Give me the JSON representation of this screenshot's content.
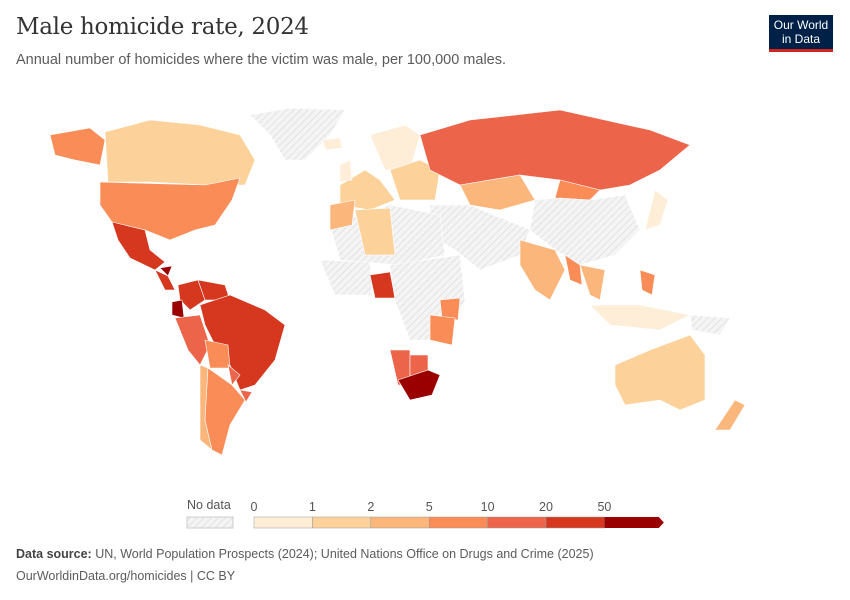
{
  "header": {
    "title": "Male homicide rate, 2024",
    "subtitle": "Annual number of homicides where the victim was male, per 100,000 males.",
    "logo": "Our World in Data"
  },
  "legend": {
    "no_data_label": "No data",
    "ticks": [
      "0",
      "1",
      "2",
      "5",
      "10",
      "20",
      "50"
    ],
    "bins": [
      {
        "range": "0-1",
        "color": "#feeed8"
      },
      {
        "range": "1-2",
        "color": "#fcd29a"
      },
      {
        "range": "2-5",
        "color": "#fbb67c"
      },
      {
        "range": "5-10",
        "color": "#f98c57"
      },
      {
        "range": "10-20",
        "color": "#ec654a"
      },
      {
        "range": "20-50",
        "color": "#d5371f"
      },
      {
        "range": ">50",
        "color": "#9b0000"
      }
    ],
    "no_data_color": "#eeeeee"
  },
  "map_regions": [
    {
      "name": "Canada",
      "bin": 1
    },
    {
      "name": "United States",
      "bin": 3
    },
    {
      "name": "Alaska",
      "bin": 3
    },
    {
      "name": "Greenland",
      "bin": -1
    },
    {
      "name": "Mexico",
      "bin": 5
    },
    {
      "name": "Central America",
      "bin": 5
    },
    {
      "name": "Honduras",
      "bin": 6
    },
    {
      "name": "Colombia",
      "bin": 5
    },
    {
      "name": "Venezuela",
      "bin": 5
    },
    {
      "name": "Ecuador",
      "bin": 6
    },
    {
      "name": "Peru",
      "bin": 4
    },
    {
      "name": "Brazil",
      "bin": 5
    },
    {
      "name": "Bolivia",
      "bin": 3
    },
    {
      "name": "Paraguay",
      "bin": 4
    },
    {
      "name": "Chile",
      "bin": 2
    },
    {
      "name": "Argentina",
      "bin": 3
    },
    {
      "name": "Uruguay",
      "bin": 4
    },
    {
      "name": "Europe West",
      "bin": 1
    },
    {
      "name": "Scandinavia",
      "bin": 0
    },
    {
      "name": "Eastern Europe",
      "bin": 1
    },
    {
      "name": "Russia",
      "bin": 4
    },
    {
      "name": "Kazakhstan",
      "bin": 2
    },
    {
      "name": "Mongolia",
      "bin": 3
    },
    {
      "name": "China",
      "bin": -1
    },
    {
      "name": "Middle East",
      "bin": -1
    },
    {
      "name": "India",
      "bin": 2
    },
    {
      "name": "Myanmar",
      "bin": 3
    },
    {
      "name": "Southeast Asia",
      "bin": 2
    },
    {
      "name": "Japan",
      "bin": 0
    },
    {
      "name": "Philippines",
      "bin": 3
    },
    {
      "name": "Indonesia",
      "bin": 0
    },
    {
      "name": "Papua New Guinea",
      "bin": -1
    },
    {
      "name": "North Africa",
      "bin": -1
    },
    {
      "name": "Algeria",
      "bin": 1
    },
    {
      "name": "Morocco",
      "bin": 2
    },
    {
      "name": "West Africa",
      "bin": -1
    },
    {
      "name": "Nigeria",
      "bin": 5
    },
    {
      "name": "Central Africa",
      "bin": -1
    },
    {
      "name": "Kenya",
      "bin": 3
    },
    {
      "name": "Tanzania",
      "bin": 3
    },
    {
      "name": "Namibia",
      "bin": 4
    },
    {
      "name": "Botswana",
      "bin": 4
    },
    {
      "name": "South Africa",
      "bin": 6
    },
    {
      "name": "Australia",
      "bin": 1
    },
    {
      "name": "New Zealand",
      "bin": 2
    },
    {
      "name": "Iceland",
      "bin": 0
    },
    {
      "name": "UK",
      "bin": 0
    }
  ],
  "footer": {
    "source_label": "Data source:",
    "source": "UN, World Population Prospects (2024); United Nations Office on Drugs and Crime (2025)",
    "url": "OurWorldinData.org/homicides | CC BY"
  }
}
